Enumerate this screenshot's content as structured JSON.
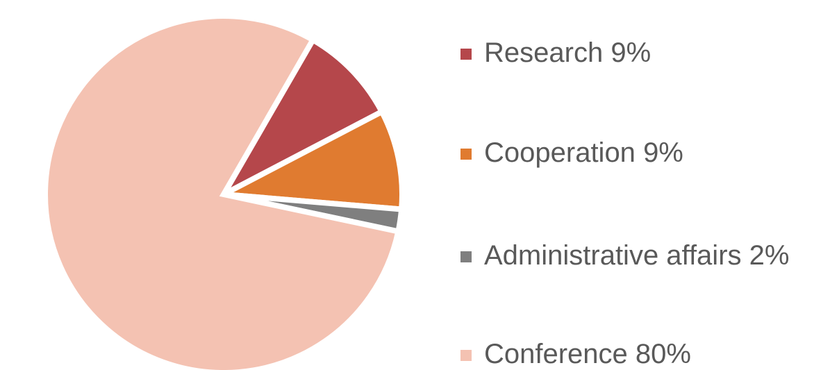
{
  "chart_data": {
    "type": "pie",
    "categories": [
      "Research",
      "Cooperation",
      "Administrative affairs",
      "Conference"
    ],
    "values": [
      9,
      9,
      2,
      80
    ],
    "value_labels": [
      "9%",
      "9%",
      "2%",
      "80%"
    ],
    "colors": [
      "#b5474b",
      "#e07b30",
      "#7f7f7f",
      "#f4c2b2"
    ],
    "legend": "right"
  }
}
